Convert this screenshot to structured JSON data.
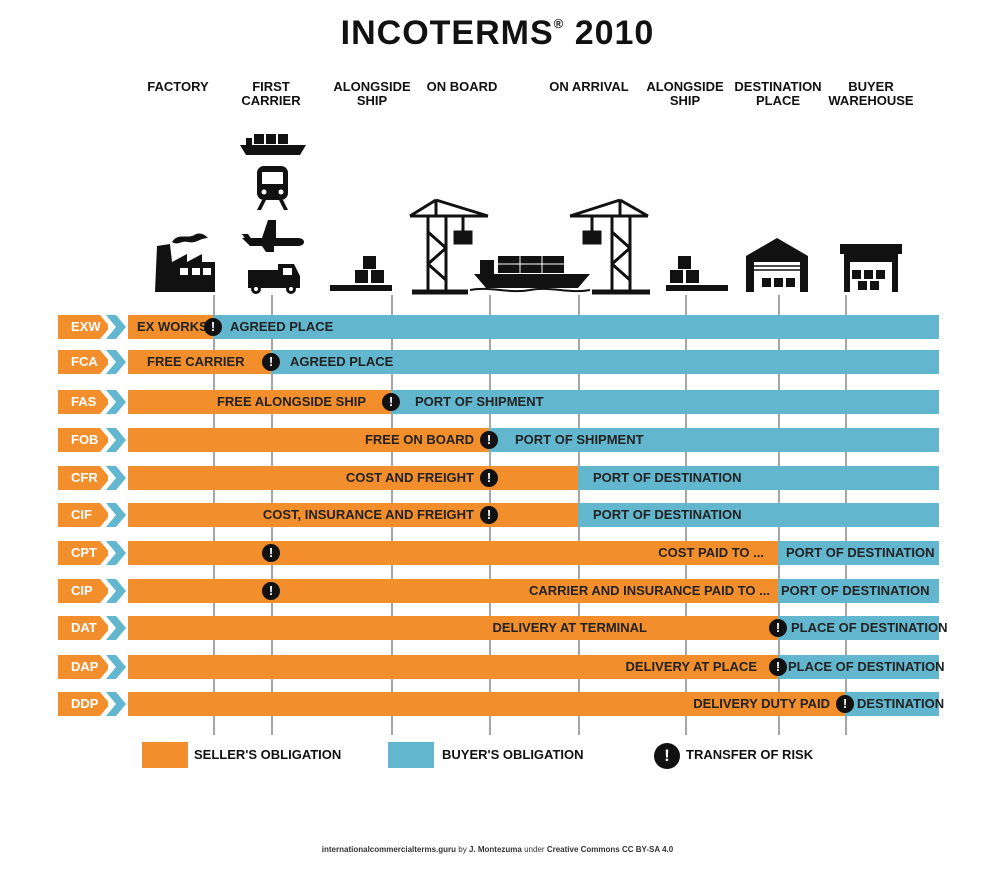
{
  "title": {
    "text": "INCOTERMS",
    "reg": "®",
    "year": "2010"
  },
  "stages": [
    {
      "line1": "FACTORY",
      "line2": ""
    },
    {
      "line1": "FIRST",
      "line2": "CARRIER"
    },
    {
      "line1": "ALONGSIDE",
      "line2": "SHIP"
    },
    {
      "line1": "ON BOARD",
      "line2": ""
    },
    {
      "line1": "ON ARRIVAL",
      "line2": ""
    },
    {
      "line1": "ALONGSIDE",
      "line2": "SHIP"
    },
    {
      "line1": "DESTINATION",
      "line2": "PLACE"
    },
    {
      "line1": "BUYER",
      "line2": "WAREHOUSE"
    }
  ],
  "colors": {
    "seller": "#f28e2c",
    "buyer": "#62b6cd",
    "risk": "#111111"
  },
  "icons": [
    "factory-icon",
    "ship-icon",
    "train-icon",
    "plane-icon",
    "truck-icon",
    "cargo-platform-icon",
    "crane-icon",
    "container-ship-icon",
    "crane-icon",
    "cargo-platform-icon",
    "warehouse-icon",
    "warehouse-icon"
  ],
  "terms": [
    {
      "code": "EXW",
      "seller_label": "EX WORKS",
      "buyer_label": "AGREED PLACE",
      "risk_symbol": "!"
    },
    {
      "code": "FCA",
      "seller_label": "FREE CARRIER",
      "buyer_label": "AGREED PLACE",
      "risk_symbol": "!"
    },
    {
      "code": "FAS",
      "seller_label": "FREE ALONGSIDE SHIP",
      "buyer_label": "PORT OF SHIPMENT",
      "risk_symbol": "!"
    },
    {
      "code": "FOB",
      "seller_label": "FREE ON BOARD",
      "buyer_label": "PORT OF SHIPMENT",
      "risk_symbol": "!"
    },
    {
      "code": "CFR",
      "seller_label": "COST AND FREIGHT",
      "buyer_label": "PORT OF DESTINATION",
      "risk_symbol": "!"
    },
    {
      "code": "CIF",
      "seller_label": "COST, INSURANCE AND FREIGHT",
      "buyer_label": "PORT OF DESTINATION",
      "risk_symbol": "!"
    },
    {
      "code": "CPT",
      "seller_label": "COST PAID TO ...",
      "buyer_label": "PORT OF DESTINATION",
      "risk_symbol": "!"
    },
    {
      "code": "CIP",
      "seller_label": "CARRIER AND INSURANCE PAID TO ...",
      "buyer_label": "PORT OF DESTINATION",
      "risk_symbol": "!"
    },
    {
      "code": "DAT",
      "seller_label": "DELIVERY AT TERMINAL",
      "buyer_label": "PLACE OF DESTINATION",
      "risk_symbol": "!"
    },
    {
      "code": "DAP",
      "seller_label": "DELIVERY AT PLACE",
      "buyer_label": "PLACE OF DESTINATION",
      "risk_symbol": "!"
    },
    {
      "code": "DDP",
      "seller_label": "DELIVERY DUTY PAID",
      "buyer_label": "DESTINATION",
      "risk_symbol": "!"
    }
  ],
  "legend": {
    "seller": "SELLER'S OBLIGATION",
    "buyer": "BUYER'S OBLIGATION",
    "risk": "TRANSFER OF RISK",
    "risk_symbol": "!"
  },
  "credit": {
    "site": "internationalcommercialterms.guru",
    "by": "by",
    "author": "J. Montezuma",
    "under": "under",
    "license": "Creative Commons CC BY-SA 4.0"
  }
}
